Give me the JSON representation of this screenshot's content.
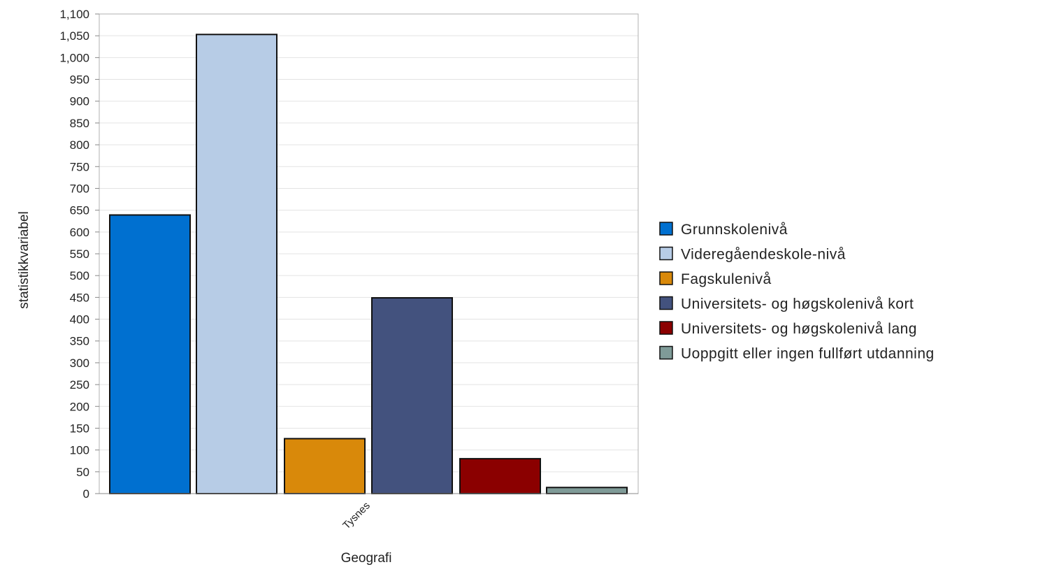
{
  "chart_data": {
    "type": "bar",
    "title": "",
    "xlabel": "Geografi",
    "ylabel": "statistikkvariabel",
    "categories": [
      "Tysnes"
    ],
    "ylim": [
      0,
      1100
    ],
    "ytick_step": 50,
    "ytick_labels": [
      "0",
      "50",
      "100",
      "150",
      "200",
      "250",
      "300",
      "350",
      "400",
      "450",
      "500",
      "550",
      "600",
      "650",
      "700",
      "750",
      "800",
      "850",
      "900",
      "950",
      "1,000",
      "1,050",
      "1,100"
    ],
    "grid": true,
    "legend_position": "right",
    "series": [
      {
        "name": "Grunnskolenivå",
        "values": [
          639
        ],
        "color": "#0070d0"
      },
      {
        "name": "Videregåendeskole-nivå",
        "values": [
          1053
        ],
        "color": "#b7cce6"
      },
      {
        "name": "Fagskulenivå",
        "values": [
          126
        ],
        "color": "#d9890a"
      },
      {
        "name": "Universitets- og høgskolenivå kort",
        "values": [
          449
        ],
        "color": "#43527e"
      },
      {
        "name": "Universitets- og høgskolenivå lang",
        "values": [
          80
        ],
        "color": "#8b0000"
      },
      {
        "name": "Uoppgitt eller ingen fullført utdanning",
        "values": [
          14
        ],
        "color": "#7f9b98"
      }
    ]
  }
}
